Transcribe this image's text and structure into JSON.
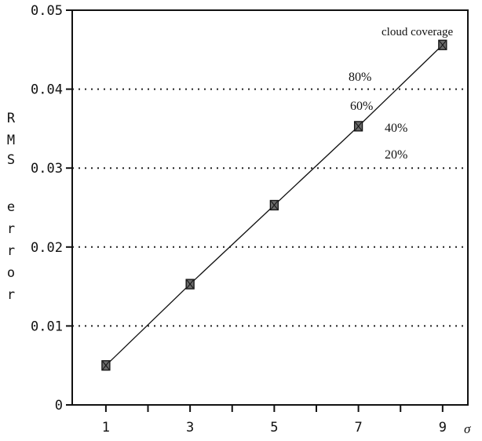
{
  "chart_data": {
    "type": "line",
    "ylabel": "RMS error",
    "xlabel": "σ",
    "x_ticks": [
      1,
      2,
      3,
      4,
      5,
      6,
      7,
      8,
      9
    ],
    "x_tick_labels": [
      "1",
      "3",
      "5",
      "7",
      "9"
    ],
    "y_ticks": [
      0,
      0.01,
      0.02,
      0.03,
      0.04,
      0.05
    ],
    "y_tick_labels": [
      "0",
      "0.01",
      "0.02",
      "0.03",
      "0.04",
      "0.05"
    ],
    "xlim": [
      0.2,
      9.6
    ],
    "ylim": [
      0,
      0.05
    ],
    "grid": "horizontal-dotted",
    "series": [
      {
        "x": [
          1,
          3,
          5,
          7,
          9
        ],
        "y": [
          0.005,
          0.0153,
          0.0253,
          0.0353,
          0.0456
        ]
      }
    ],
    "annotations": {
      "legend_title": "cloud coverage",
      "levels": [
        "80%",
        "60%",
        "40%",
        "20%"
      ]
    }
  }
}
